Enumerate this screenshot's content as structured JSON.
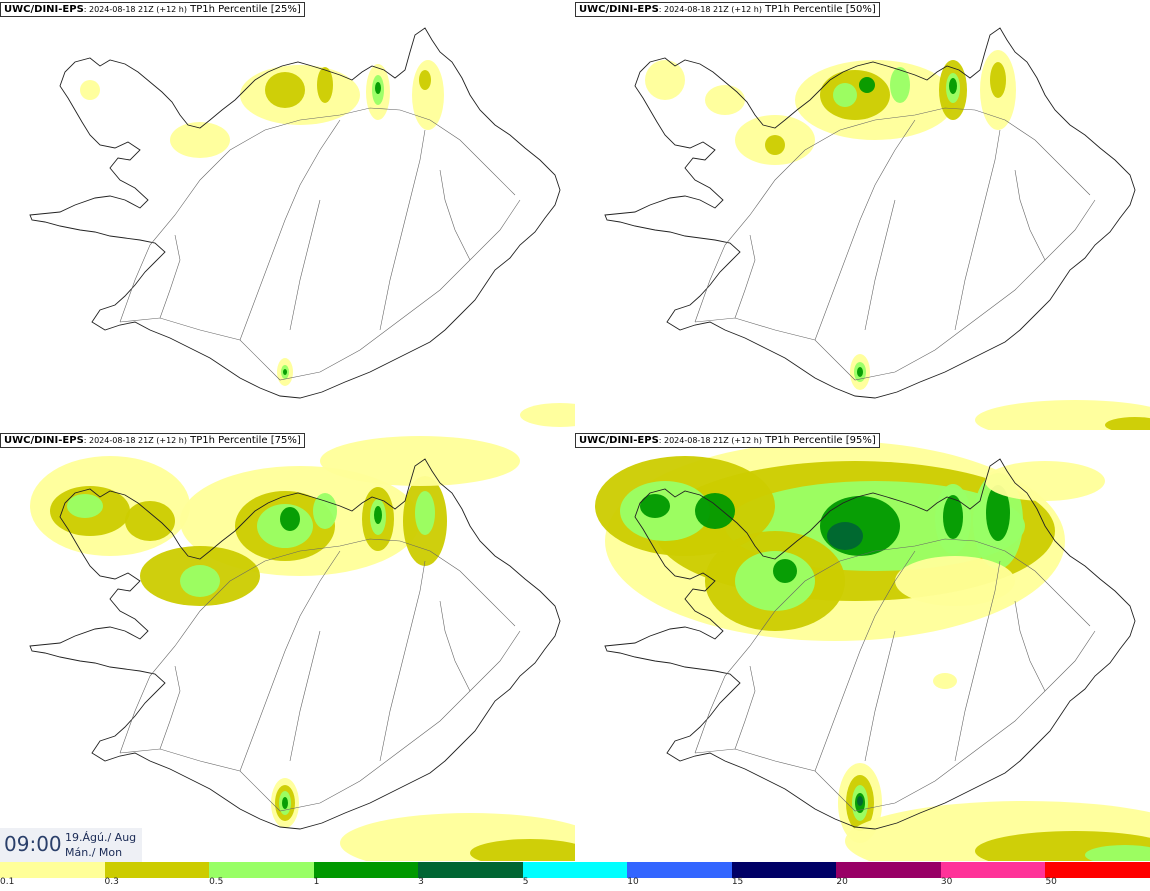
{
  "panels": [
    {
      "model": "UWC/DINI-EPS",
      "run": ": 2024-08-18 21Z (+12 h)",
      "product": " TP1h Percentile [25%]",
      "level": 1
    },
    {
      "model": "UWC/DINI-EPS",
      "run": ": 2024-08-18 21Z (+12 h)",
      "product": " TP1h Percentile [50%]",
      "level": 2
    },
    {
      "model": "UWC/DINI-EPS",
      "run": ": 2024-08-18 21Z (+12 h)",
      "product": " TP1h Percentile [75%]",
      "level": 3
    },
    {
      "model": "UWC/DINI-EPS",
      "run": ": 2024-08-18 21Z (+12 h)",
      "product": " TP1h Percentile [95%]",
      "level": 4
    }
  ],
  "time": {
    "hour": "09:00",
    "date_line1": "19.Ágú./ Aug",
    "date_line2": "Mán./ Mon"
  },
  "colorbar": {
    "colors": [
      "#ffff99",
      "#cccc00",
      "#99ff66",
      "#009900",
      "#006633",
      "#00ffff",
      "#3366ff",
      "#000066",
      "#990066",
      "#ff3399",
      "#ff0000"
    ],
    "ticks": [
      "0.1",
      "0.3",
      "0.5",
      "1",
      "3",
      "5",
      "10",
      "15",
      "20",
      "30",
      "50"
    ]
  }
}
